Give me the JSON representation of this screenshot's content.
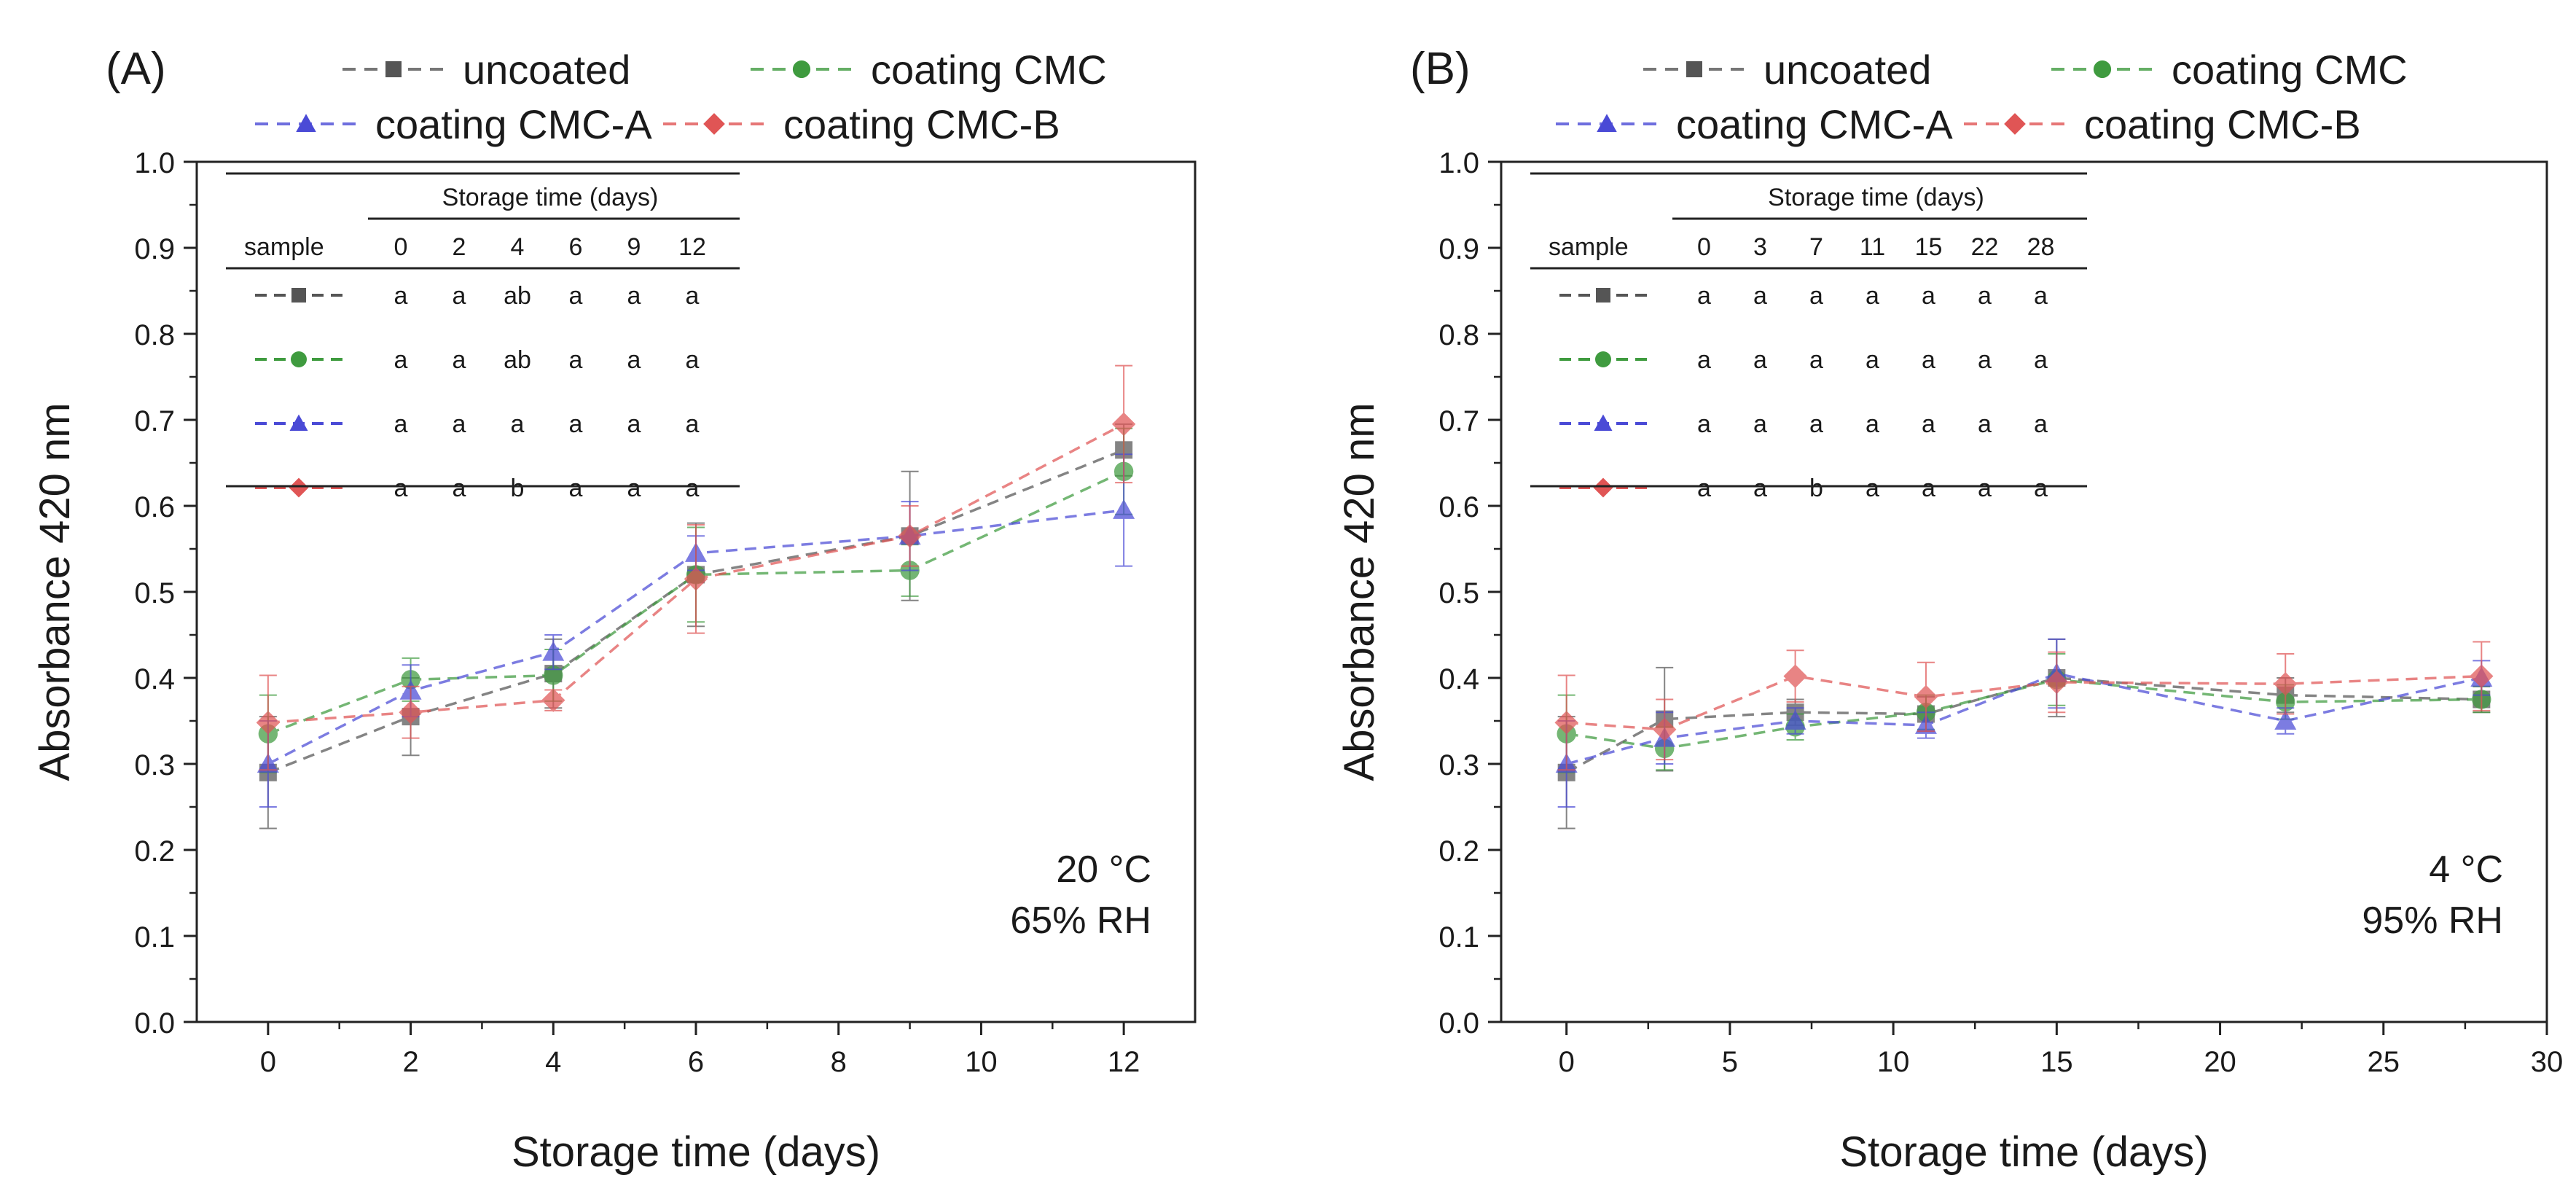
{
  "chart_data": [
    {
      "type": "line",
      "panel_label": "(A)",
      "xlabel": "Storage time (days)",
      "ylabel": "Absorbance 420 nm",
      "xlim": [
        -1,
        13
      ],
      "ylim": [
        0.0,
        1.0
      ],
      "xticks": [
        0,
        2,
        4,
        6,
        8,
        10,
        12
      ],
      "yticks": [
        0.0,
        0.1,
        0.2,
        0.3,
        0.4,
        0.5,
        0.6,
        0.7,
        0.8,
        0.9,
        1.0
      ],
      "condition": [
        "20 °C",
        "65% RH"
      ],
      "x": [
        0,
        2,
        4,
        6,
        9,
        12
      ],
      "series": [
        {
          "name": "uncoated",
          "color": "#555555",
          "marker": "square",
          "values": [
            0.29,
            0.355,
            0.405,
            0.52,
            0.565,
            0.665
          ],
          "errors": [
            0.065,
            0.045,
            0.04,
            0.06,
            0.075,
            0.03
          ]
        },
        {
          "name": "coating CMC",
          "color": "#3f9b3f",
          "marker": "circle",
          "values": [
            0.335,
            0.398,
            0.403,
            0.52,
            0.525,
            0.64
          ],
          "errors": [
            0.045,
            0.025,
            0.03,
            0.055,
            0.03,
            0.05
          ]
        },
        {
          "name": "coating CMC-A",
          "color": "#4a4ad6",
          "marker": "triangle",
          "values": [
            0.3,
            0.385,
            0.43,
            0.545,
            0.565,
            0.595
          ],
          "errors": [
            0.05,
            0.03,
            0.02,
            0.02,
            0.04,
            0.065
          ]
        },
        {
          "name": "coating CMC-B",
          "color": "#e05555",
          "marker": "diamond",
          "values": [
            0.348,
            0.36,
            0.374,
            0.515,
            0.565,
            0.695
          ],
          "errors": [
            0.055,
            0.03,
            0.012,
            0.063,
            0.035,
            0.068
          ]
        }
      ],
      "table": {
        "title": "Storage time (days)",
        "header_label": "sample",
        "columns": [
          "0",
          "2",
          "4",
          "6",
          "9",
          "12"
        ],
        "rows": [
          [
            "a",
            "a",
            "ab",
            "a",
            "a",
            "a"
          ],
          [
            "a",
            "a",
            "ab",
            "a",
            "a",
            "a"
          ],
          [
            "a",
            "a",
            "a",
            "a",
            "a",
            "a"
          ],
          [
            "a",
            "a",
            "b",
            "a",
            "a",
            "a"
          ]
        ]
      }
    },
    {
      "type": "line",
      "panel_label": "(B)",
      "xlabel": "Storage time (days)",
      "ylabel": "Absorbance 420 nm",
      "xlim": [
        -2,
        30
      ],
      "ylim": [
        0.0,
        1.0
      ],
      "xticks": [
        0,
        5,
        10,
        15,
        20,
        25,
        30
      ],
      "yticks": [
        0.0,
        0.1,
        0.2,
        0.3,
        0.4,
        0.5,
        0.6,
        0.7,
        0.8,
        0.9,
        1.0
      ],
      "condition": [
        "4 °C",
        "95% RH"
      ],
      "x": [
        0,
        3,
        7,
        11,
        15,
        22,
        28
      ],
      "series": [
        {
          "name": "uncoated",
          "color": "#555555",
          "marker": "square",
          "values": [
            0.29,
            0.352,
            0.36,
            0.358,
            0.4,
            0.38,
            0.375
          ],
          "errors": [
            0.065,
            0.06,
            0.015,
            0.02,
            0.045,
            0.02,
            0.015
          ]
        },
        {
          "name": "coating CMC",
          "color": "#3f9b3f",
          "marker": "circle",
          "values": [
            0.335,
            0.318,
            0.343,
            0.36,
            0.398,
            0.372,
            0.375
          ],
          "errors": [
            0.045,
            0.025,
            0.015,
            0.02,
            0.03,
            0.02,
            0.015
          ]
        },
        {
          "name": "coating CMC-A",
          "color": "#4a4ad6",
          "marker": "triangle",
          "values": [
            0.3,
            0.33,
            0.35,
            0.345,
            0.405,
            0.35,
            0.4
          ],
          "errors": [
            0.05,
            0.03,
            0.015,
            0.015,
            0.04,
            0.015,
            0.02
          ]
        },
        {
          "name": "coating CMC-B",
          "color": "#e05555",
          "marker": "diamond",
          "values": [
            0.348,
            0.34,
            0.402,
            0.378,
            0.395,
            0.393,
            0.402
          ],
          "errors": [
            0.055,
            0.035,
            0.03,
            0.04,
            0.035,
            0.035,
            0.04
          ]
        }
      ],
      "table": {
        "title": "Storage time (days)",
        "header_label": "sample",
        "columns": [
          "0",
          "3",
          "7",
          "11",
          "15",
          "22",
          "28"
        ],
        "rows": [
          [
            "a",
            "a",
            "a",
            "a",
            "a",
            "a",
            "a"
          ],
          [
            "a",
            "a",
            "a",
            "a",
            "a",
            "a",
            "a"
          ],
          [
            "a",
            "a",
            "a",
            "a",
            "a",
            "a",
            "a"
          ],
          [
            "a",
            "a",
            "b",
            "a",
            "a",
            "a",
            "a"
          ]
        ]
      }
    }
  ]
}
